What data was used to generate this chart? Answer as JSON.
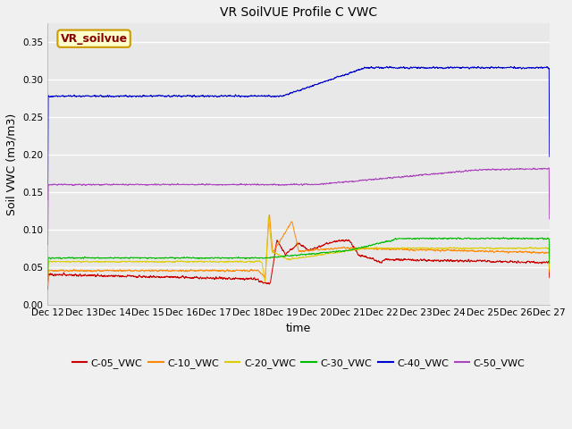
{
  "title": "VR SoilVUE Profile C VWC",
  "xlabel": "time",
  "ylabel": "Soil VWC (m3/m3)",
  "ylim": [
    0.0,
    0.375
  ],
  "yticks": [
    0.0,
    0.05,
    0.1,
    0.15,
    0.2,
    0.25,
    0.3,
    0.35
  ],
  "fig_bg_color": "#f0f0f0",
  "plot_bg_color": "#e8e8e8",
  "legend_label": "VR_soilvue",
  "legend_bg": "#ffffcc",
  "legend_border": "#cc9900",
  "series": {
    "C-05_VWC": {
      "color": "#cc0000"
    },
    "C-10_VWC": {
      "color": "#ff8800"
    },
    "C-20_VWC": {
      "color": "#ddcc00"
    },
    "C-30_VWC": {
      "color": "#00bb00"
    },
    "C-40_VWC": {
      "color": "#0000cc"
    },
    "C-50_VWC": {
      "color": "#aa44bb"
    }
  },
  "x_tick_labels": [
    "Dec 12",
    "Dec 13",
    "Dec 14",
    "Dec 15",
    "Dec 16",
    "Dec 17",
    "Dec 18",
    "Dec 19",
    "Dec 20",
    "Dec 21",
    "Dec 22",
    "Dec 23",
    "Dec 24",
    "Dec 25",
    "Dec 26",
    "Dec 27"
  ],
  "num_points": 4000
}
